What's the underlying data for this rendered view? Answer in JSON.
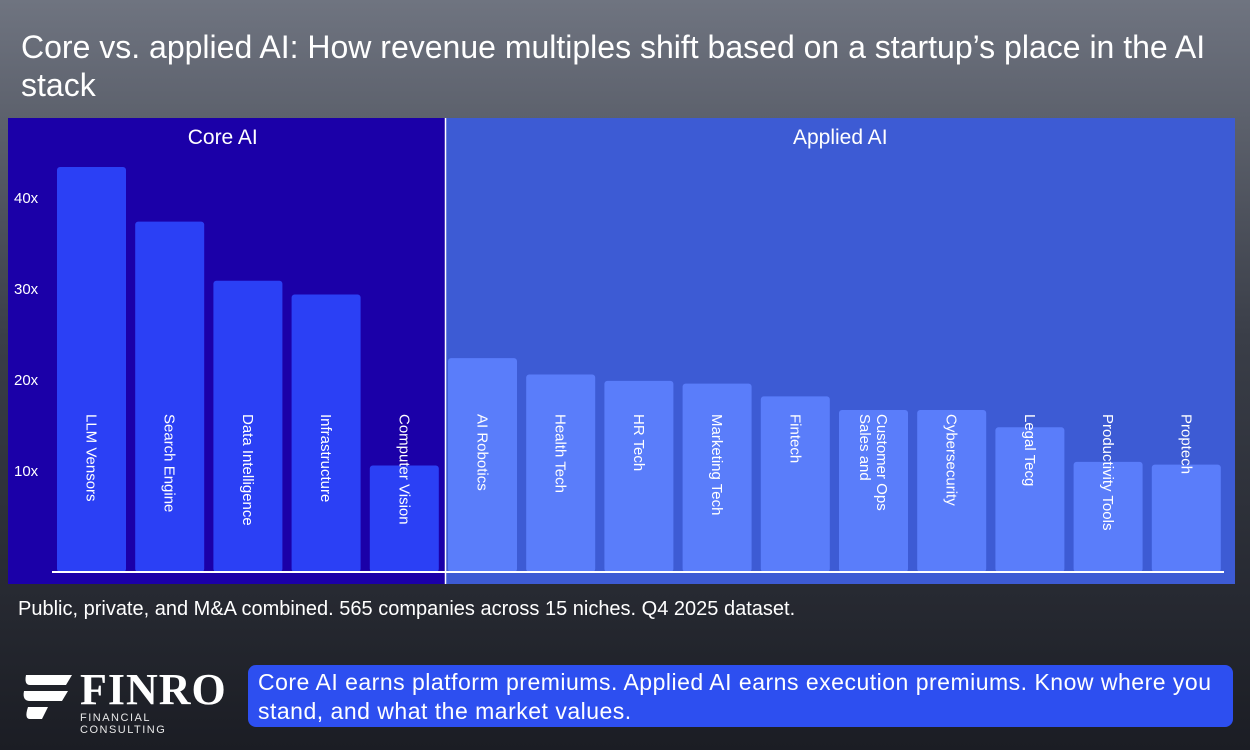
{
  "title": "Core vs. applied AI: How revenue multiples shift based on a startup’s place in the AI stack",
  "chart_data": {
    "type": "bar",
    "orientation": "vertical",
    "ylim": [
      0,
      45
    ],
    "yticks": [
      10,
      20,
      30,
      40
    ],
    "ytick_labels": [
      "10x",
      "20x",
      "30x",
      "40x"
    ],
    "unit": "x",
    "groups": [
      {
        "name": "Core AI",
        "background": "#1b00a8",
        "bar_color": "#2b40f5",
        "categories": [
          "LLM Vensors",
          "Search Engine",
          "Data Intelligence",
          "Infrastructure",
          "Computer Vision"
        ],
        "values": [
          44.5,
          38.5,
          32.0,
          30.5,
          11.7
        ]
      },
      {
        "name": "Applied AI",
        "background": "#3d5bd4",
        "bar_color": "#5a7dfa",
        "categories": [
          "AI Robotics",
          "Health Tech",
          "HR Tech",
          "Marketing Tech",
          "Fintech",
          "Sales and\nCustomer Ops",
          "Cybersecurity",
          "Legal Tecg",
          "Productivity Tools",
          "Proptech"
        ],
        "values": [
          23.5,
          21.7,
          21.0,
          20.7,
          19.3,
          17.8,
          17.8,
          15.9,
          12.1,
          11.8
        ]
      }
    ]
  },
  "footnote": "Public, private, and M&A combined. 565 companies across 15 niches. Q4 2025 dataset.",
  "logo": {
    "wordmark": "FINRO",
    "subtitle": "FINANCIAL CONSULTING"
  },
  "callout": "Core AI earns platform premiums. Applied AI earns execution premiums. Know where you stand, and what the market values."
}
